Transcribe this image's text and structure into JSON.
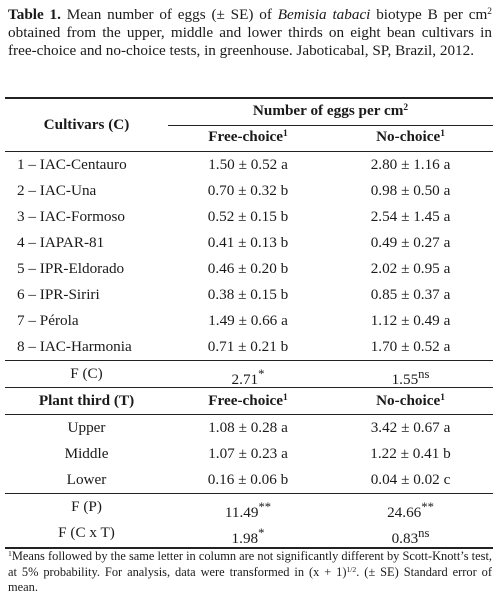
{
  "caption": {
    "label": "Table 1.",
    "text_1": " Mean number of eggs (± SE) of ",
    "species": "Bemisia tabaci",
    "text_2": " biotype B per cm",
    "sup": "2",
    "text_3": " obtained from the upper, middle and lower thirds on eight bean cultivars in free-choice and no-choice tests, in greenhouse. Jaboticabal, SP, Brazil, 2012."
  },
  "header": {
    "cultivars": "Cultivars (C)",
    "group_title": "Number of eggs per cm",
    "group_sup": "2",
    "free_choice": "Free-choice",
    "no_choice": "No-choice",
    "mark": "1"
  },
  "cultivars": [
    {
      "name": "1 – IAC-Centauro",
      "free": "1.50 ± 0.52 a",
      "no": "2.80 ± 1.16 a"
    },
    {
      "name": "2 – IAC-Una",
      "free": "0.70 ± 0.32 b",
      "no": "0.98 ± 0.50 a"
    },
    {
      "name": "3 – IAC-Formoso",
      "free": "0.52 ± 0.15 b",
      "no": "2.54 ± 1.45 a"
    },
    {
      "name": "4 – IAPAR-81",
      "free": "0.41 ± 0.13 b",
      "no": "0.49 ± 0.27 a"
    },
    {
      "name": "5 – IPR-Eldorado",
      "free": "0.46 ± 0.20 b",
      "no": "2.02 ± 0.95 a"
    },
    {
      "name": "6 – IPR-Siriri",
      "free": "0.38 ± 0.15 b",
      "no": "0.85 ± 0.37 a"
    },
    {
      "name": "7 – Pérola",
      "free": "1.49 ± 0.66 a",
      "no": "1.12 ± 0.49 a"
    },
    {
      "name": "8 – IAC-Harmonia",
      "free": "0.71 ± 0.21 b",
      "no": "1.70 ± 0.52 a"
    }
  ],
  "f_c": {
    "label": "F (C)",
    "free": "2.71",
    "free_sup": "*",
    "no": "1.55",
    "no_sup": "ns"
  },
  "third_header": {
    "label": "Plant third (T)",
    "free_choice": "Free-choice",
    "no_choice": "No-choice",
    "mark": "1"
  },
  "thirds": [
    {
      "name": "Upper",
      "free": "1.08 ± 0.28 a",
      "no": "3.42 ± 0.67 a"
    },
    {
      "name": "Middle",
      "free": "1.07 ± 0.23 a",
      "no": "1.22 ± 0.41 b"
    },
    {
      "name": "Lower",
      "free": "0.16 ± 0.06 b",
      "no": "0.04 ± 0.02 c"
    }
  ],
  "f_p": {
    "label": "F (P)",
    "free": "11.49",
    "free_sup": "**",
    "no": "24.66",
    "no_sup": "**"
  },
  "f_cxt": {
    "label": "F (C x T)",
    "free": "1.98",
    "free_sup": "*",
    "no": "0.83",
    "no_sup": "ns"
  },
  "footnote": {
    "mark": "1",
    "text_1": "Means followed by the same letter in column are not significantly different by Scott-Knott’s test, at 5% probability. For analysis, data were transformed in (x + 1)",
    "exp": "1/2",
    "text_2": ". (± SE) Standard error of mean."
  }
}
